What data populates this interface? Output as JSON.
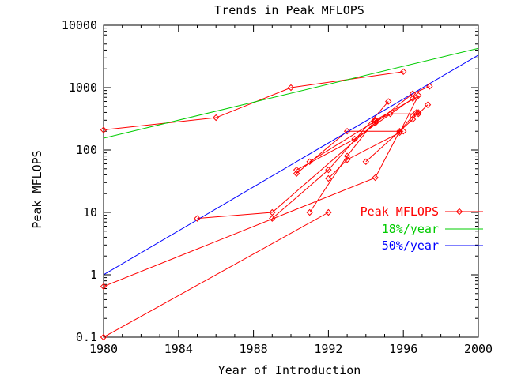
{
  "chart_data": {
    "type": "line",
    "title": "Trends in Peak MFLOPS",
    "xlabel": "Year of Introduction",
    "ylabel": "Peak MFLOPS",
    "xlim": [
      1980,
      2000
    ],
    "ylim": [
      0.1,
      10000
    ],
    "yscale": "log",
    "grid": false,
    "legend_position": "right-middle",
    "x_ticks": [
      1980,
      1984,
      1988,
      1992,
      1996,
      2000
    ],
    "x_tick_labels": [
      "1980",
      "1984",
      "1988",
      "1992",
      "1996",
      "2000"
    ],
    "y_ticks": [
      0.1,
      1,
      10,
      100,
      1000,
      10000
    ],
    "y_tick_labels": [
      "0.1",
      "1",
      "10",
      "100",
      "1000",
      "10000"
    ],
    "legend": [
      {
        "label": "Peak MFLOPS",
        "color": "#ff0000",
        "marker": "diamond"
      },
      {
        "label": "18%/year",
        "color": "#00cc00",
        "marker": "none"
      },
      {
        "label": "50%/year",
        "color": "#0000ff",
        "marker": "none"
      }
    ],
    "series": [
      {
        "name": "Peak MFLOPS",
        "kind": "segment",
        "color": "#ff0000",
        "points": [
          [
            1980,
            210
          ],
          [
            1986,
            330
          ],
          [
            1990,
            1000
          ],
          [
            1996,
            1800
          ]
        ]
      },
      {
        "name": "Peak MFLOPS",
        "kind": "segment",
        "color": "#ff0000",
        "points": [
          [
            1980,
            0.1
          ],
          [
            1992,
            10
          ]
        ]
      },
      {
        "name": "Peak MFLOPS",
        "kind": "segment",
        "color": "#ff0000",
        "points": [
          [
            1980,
            0.65
          ],
          [
            1994.5,
            36
          ],
          [
            1995.8,
            200
          ],
          [
            1996.5,
            350
          ],
          [
            1996.8,
            400
          ]
        ]
      },
      {
        "name": "Peak MFLOPS",
        "kind": "segment",
        "color": "#ff0000",
        "points": [
          [
            1985,
            8
          ],
          [
            1989,
            10
          ],
          [
            1994.5,
            270
          ],
          [
            1996.5,
            800
          ],
          [
            1997.4,
            1050
          ]
        ]
      },
      {
        "name": "Peak MFLOPS",
        "kind": "segment",
        "color": "#ff0000",
        "points": [
          [
            1989,
            8
          ],
          [
            1992,
            48
          ],
          [
            1995.2,
            600
          ]
        ]
      },
      {
        "name": "Peak MFLOPS",
        "kind": "segment",
        "color": "#ff0000",
        "points": [
          [
            1990.3,
            42
          ],
          [
            1993,
            200
          ],
          [
            1996,
            200
          ]
        ]
      },
      {
        "name": "Peak MFLOPS",
        "kind": "segment",
        "color": "#ff0000",
        "points": [
          [
            1990.3,
            48
          ],
          [
            1993.4,
            150
          ],
          [
            1996.5,
            670
          ]
        ]
      },
      {
        "name": "Peak MFLOPS",
        "kind": "segment",
        "color": "#ff0000",
        "points": [
          [
            1991,
            10
          ],
          [
            1993,
            80
          ],
          [
            1994.5,
            300
          ],
          [
            1996.7,
            700
          ]
        ]
      },
      {
        "name": "Peak MFLOPS",
        "kind": "segment",
        "color": "#ff0000",
        "points": [
          [
            1991,
            65
          ],
          [
            1994.5,
            290
          ],
          [
            1995.3,
            380
          ],
          [
            1996.8,
            380
          ],
          [
            1997.3,
            530
          ]
        ]
      },
      {
        "name": "Peak MFLOPS",
        "kind": "segment",
        "color": "#ff0000",
        "points": [
          [
            1992,
            35
          ],
          [
            1993,
            70
          ],
          [
            1995.8,
            190
          ],
          [
            1996.8,
            750
          ]
        ]
      },
      {
        "name": "Peak MFLOPS",
        "kind": "segment",
        "color": "#ff0000",
        "points": [
          [
            1994,
            65
          ],
          [
            1996.5,
            310
          ],
          [
            1996.7,
            400
          ]
        ]
      },
      {
        "name": "18%/year",
        "kind": "trend",
        "color": "#00cc00",
        "points": [
          [
            1980,
            155
          ],
          [
            2000,
            4270
          ]
        ]
      },
      {
        "name": "50%/year",
        "kind": "trend",
        "color": "#0000ff",
        "points": [
          [
            1980,
            1
          ],
          [
            2000,
            3325
          ]
        ]
      }
    ]
  }
}
